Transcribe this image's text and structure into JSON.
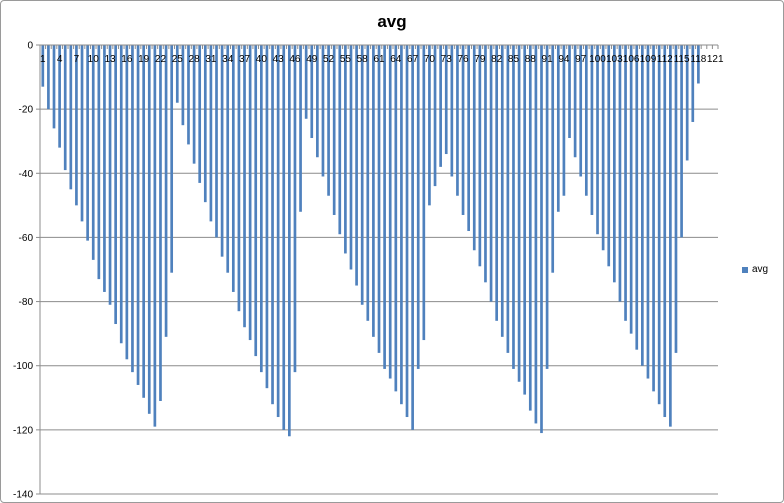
{
  "chart_data": {
    "type": "bar",
    "title": "avg",
    "categories": [
      1,
      2,
      3,
      4,
      5,
      6,
      7,
      8,
      9,
      10,
      11,
      12,
      13,
      14,
      15,
      16,
      17,
      18,
      19,
      20,
      21,
      22,
      23,
      24,
      25,
      26,
      27,
      28,
      29,
      30,
      31,
      32,
      33,
      34,
      35,
      36,
      37,
      38,
      39,
      40,
      41,
      42,
      43,
      44,
      45,
      46,
      47,
      48,
      49,
      50,
      51,
      52,
      53,
      54,
      55,
      56,
      57,
      58,
      59,
      60,
      61,
      62,
      63,
      64,
      65,
      66,
      67,
      68,
      69,
      70,
      71,
      72,
      73,
      74,
      75,
      76,
      77,
      78,
      79,
      80,
      81,
      82,
      83,
      84,
      85,
      86,
      87,
      88,
      89,
      90,
      91,
      92,
      93,
      94,
      95,
      96,
      97,
      98,
      99,
      100,
      101,
      102,
      103,
      104,
      105,
      106,
      107,
      108,
      109,
      110,
      111,
      112,
      113,
      114,
      115,
      116,
      117,
      118,
      119,
      120,
      121
    ],
    "x_tick_labels": [
      "1",
      "4",
      "7",
      "10",
      "13",
      "16",
      "19",
      "22",
      "25",
      "28",
      "31",
      "34",
      "37",
      "40",
      "43",
      "46",
      "49",
      "52",
      "55",
      "58",
      "61",
      "64",
      "67",
      "70",
      "73",
      "76",
      "79",
      "82",
      "85",
      "88",
      "91",
      "94",
      "97",
      "100",
      "103",
      "106",
      "109",
      "112",
      "115",
      "118",
      "121"
    ],
    "series": [
      {
        "name": "avg",
        "color": "#4F81BD",
        "values": [
          -13,
          -20,
          -26,
          -32,
          -39,
          -45,
          -50,
          -55,
          -61,
          -67,
          -73,
          -77,
          -81,
          -87,
          -93,
          -98,
          -102,
          -106,
          -110,
          -115,
          -119,
          -111,
          -91,
          -71,
          -18,
          -25,
          -31,
          -37,
          -43,
          -49,
          -55,
          -60,
          -66,
          -71,
          -77,
          -83,
          -88,
          -92,
          -97,
          -102,
          -107,
          -112,
          -116,
          -120,
          -122,
          -102,
          -52,
          -23,
          -29,
          -35,
          -41,
          -47,
          -53,
          -59,
          -65,
          -70,
          -75,
          -81,
          -86,
          -91,
          -96,
          -101,
          -104,
          -108,
          -112,
          -116,
          -120,
          -101,
          -92,
          -50,
          -44,
          -38,
          -34,
          -41,
          -47,
          -53,
          -58,
          -64,
          -69,
          -74,
          -80,
          -86,
          -91,
          -96,
          -101,
          -105,
          -109,
          -114,
          -118,
          -121,
          -101,
          -71,
          -52,
          -47,
          -29,
          -35,
          -41,
          -47,
          -53,
          -59,
          -64,
          -69,
          -74,
          -80,
          -86,
          -90,
          -95,
          -100,
          -104,
          -108,
          -112,
          -116,
          -119,
          -96,
          -60,
          -36,
          -24,
          -12,
          0,
          0,
          0
        ]
      }
    ],
    "ylim": [
      -140,
      0
    ],
    "y_ticks": [
      0,
      -20,
      -40,
      -60,
      -80,
      -100,
      -120,
      -140
    ],
    "grid": true,
    "legend_position": "right",
    "xlabel": "",
    "ylabel": ""
  }
}
